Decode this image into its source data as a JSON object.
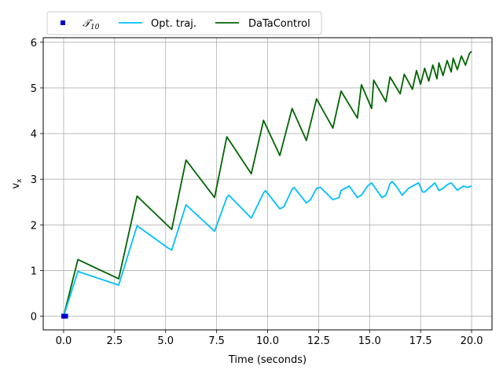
{
  "chart_data": {
    "type": "line",
    "xlabel": "Time (seconds)",
    "ylabel_main": "v",
    "ylabel_sub": "x",
    "xlim": [
      -1.0,
      21.0
    ],
    "ylim": [
      -0.3,
      6.1
    ],
    "xticks": [
      0.0,
      2.5,
      5.0,
      7.5,
      10.0,
      12.5,
      15.0,
      17.5,
      20.0
    ],
    "xtick_labels": [
      "0.0",
      "2.5",
      "5.0",
      "7.5",
      "10.0",
      "12.5",
      "15.0",
      "17.5",
      "20.0"
    ],
    "yticks": [
      0,
      1,
      2,
      3,
      4,
      5,
      6
    ],
    "ytick_labels": [
      "0",
      "1",
      "2",
      "3",
      "4",
      "5",
      "6"
    ],
    "grid": true,
    "legend_position": "top-left",
    "series": [
      {
        "name_main": "𝒯",
        "name_sub": "10",
        "kind": "markers",
        "color": "#0000cc",
        "x": [
          0.0,
          0.05,
          0.1
        ],
        "y": [
          0.0,
          0.0,
          0.0
        ]
      },
      {
        "name": "Opt. traj.",
        "kind": "line",
        "color": "#00bfff",
        "x": [
          0.0,
          0.7,
          2.7,
          3.6,
          5.1,
          5.3,
          6.0,
          7.4,
          8.0,
          8.1,
          9.2,
          9.8,
          9.9,
          10.6,
          10.8,
          11.2,
          11.3,
          11.9,
          12.1,
          12.4,
          12.6,
          13.2,
          13.5,
          13.6,
          14.0,
          14.4,
          14.6,
          14.9,
          15.1,
          15.6,
          15.8,
          16.0,
          16.1,
          16.3,
          16.6,
          16.9,
          17.4,
          17.6,
          17.7,
          17.9,
          18.2,
          18.4,
          18.6,
          18.8,
          19.0,
          19.3,
          19.6,
          19.8,
          20.0
        ],
        "y": [
          0.0,
          0.98,
          0.68,
          1.98,
          1.5,
          1.45,
          2.44,
          1.86,
          2.6,
          2.65,
          2.15,
          2.7,
          2.75,
          2.35,
          2.4,
          2.78,
          2.82,
          2.48,
          2.55,
          2.8,
          2.82,
          2.55,
          2.6,
          2.75,
          2.85,
          2.6,
          2.65,
          2.85,
          2.92,
          2.6,
          2.65,
          2.9,
          2.95,
          2.85,
          2.65,
          2.8,
          2.92,
          2.72,
          2.72,
          2.8,
          2.92,
          2.75,
          2.8,
          2.88,
          2.92,
          2.76,
          2.85,
          2.82,
          2.85
        ]
      },
      {
        "name": "DaTaControl",
        "kind": "line",
        "color": "#006400",
        "x": [
          0.0,
          0.7,
          2.7,
          3.6,
          5.3,
          6.0,
          7.4,
          8.0,
          9.2,
          9.8,
          10.6,
          11.2,
          11.9,
          12.4,
          13.2,
          13.6,
          14.4,
          14.6,
          15.1,
          15.2,
          15.8,
          16.0,
          16.5,
          16.7,
          17.1,
          17.3,
          17.5,
          17.7,
          17.9,
          18.1,
          18.3,
          18.4,
          18.6,
          18.8,
          19.0,
          19.1,
          19.3,
          19.5,
          19.7,
          19.9,
          20.0
        ],
        "y": [
          0.0,
          1.24,
          0.82,
          2.63,
          1.9,
          3.42,
          2.6,
          3.93,
          3.12,
          4.29,
          3.52,
          4.55,
          3.85,
          4.76,
          4.12,
          4.93,
          4.34,
          5.07,
          4.55,
          5.17,
          4.7,
          5.24,
          4.87,
          5.3,
          4.97,
          5.38,
          5.08,
          5.43,
          5.15,
          5.5,
          5.2,
          5.55,
          5.27,
          5.6,
          5.35,
          5.65,
          5.4,
          5.7,
          5.5,
          5.76,
          5.8
        ]
      }
    ]
  }
}
